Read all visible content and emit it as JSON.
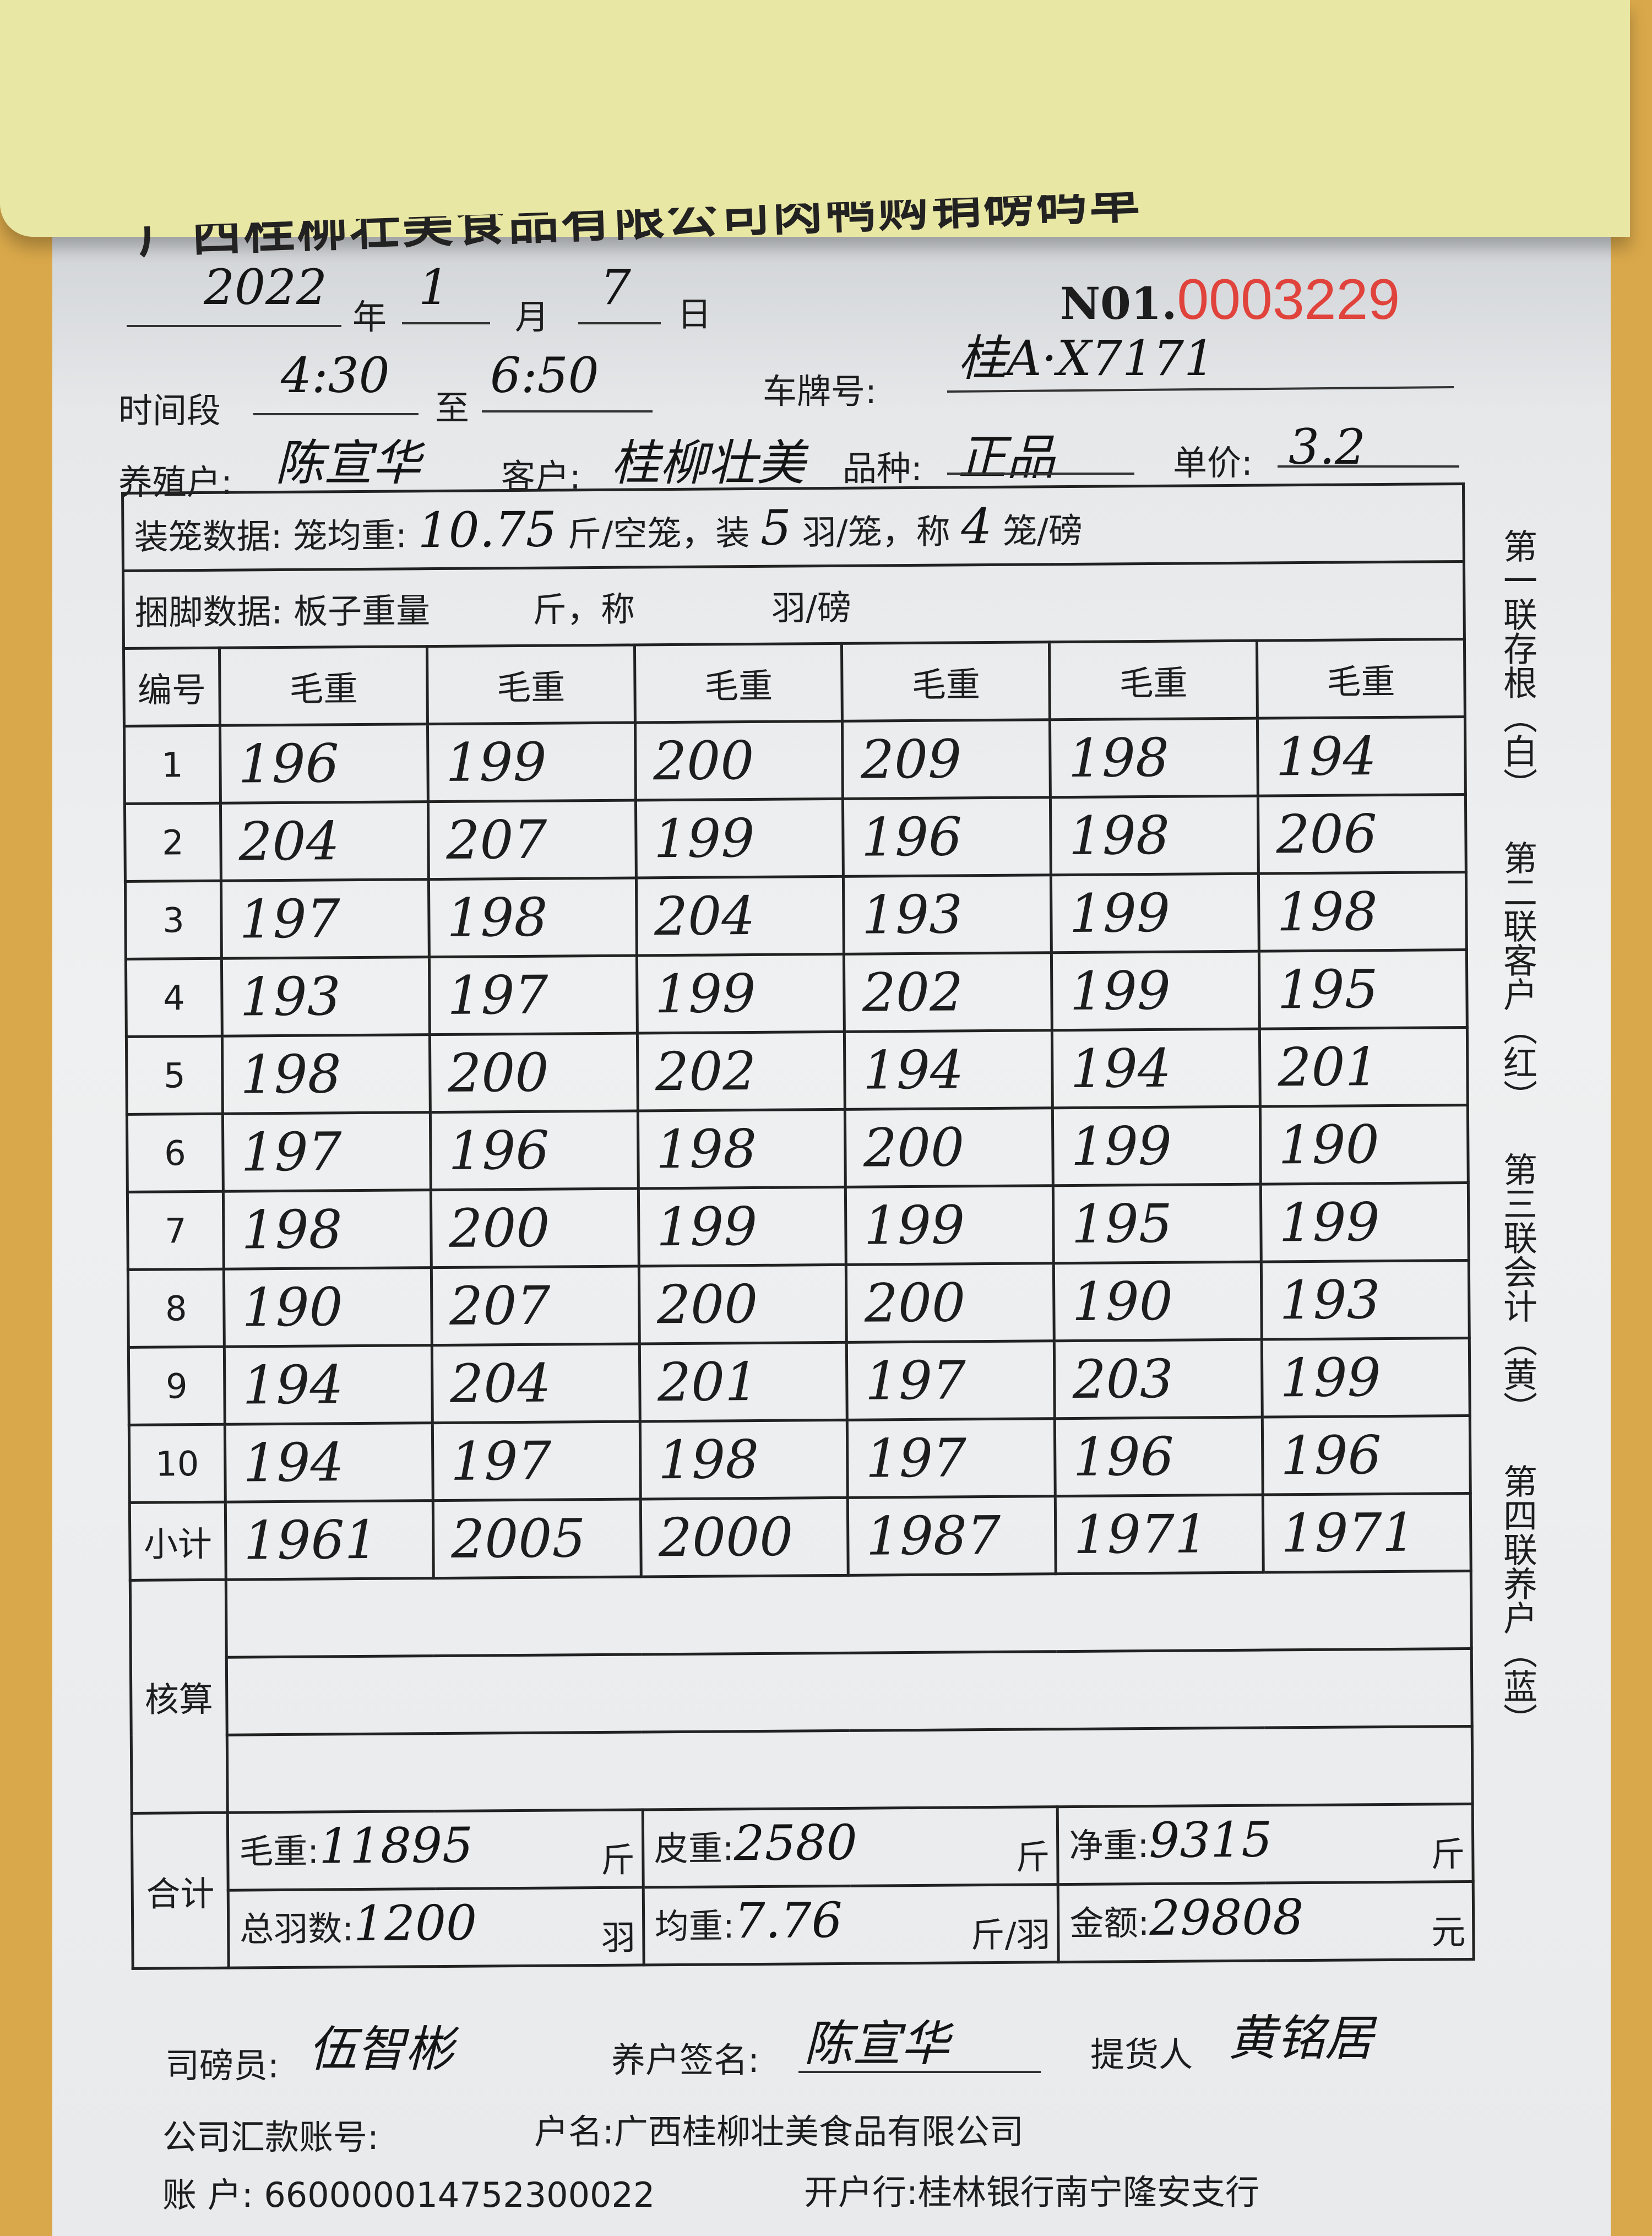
{
  "header": {
    "title": "广西桂柳壮美食品有限公司肉鸭购销磅码单",
    "no_prefix": "N01.",
    "no_value": "0003229"
  },
  "date": {
    "year": "2022",
    "year_label": "年",
    "month": "1",
    "month_label": "月",
    "day": "7",
    "day_label": "日"
  },
  "time": {
    "label": "时间段",
    "from": "4:30",
    "to_label": "至",
    "to": "6:50",
    "plate_label": "车牌号:",
    "plate": "桂A·X7171"
  },
  "parties": {
    "farmer_label": "养殖户:",
    "farmer": "陈宣华",
    "customer_label": "客户:",
    "customer": "桂柳壮美",
    "variety_label": "品种:",
    "variety": "正品",
    "price_label": "单价:",
    "price": "3.2"
  },
  "cage": {
    "label": "装笼数据: 笼均重:",
    "avg_weight": "10.75",
    "unit1": "斤/空笼，装",
    "per_cage": "5",
    "unit2": "羽/笼，称",
    "cages": "4",
    "unit3": "笼/磅"
  },
  "bind": {
    "text": "捆脚数据: 板子重量　　　斤，称　　　　羽/磅"
  },
  "table": {
    "headers": [
      "编号",
      "毛重",
      "毛重",
      "毛重",
      "毛重",
      "毛重",
      "毛重"
    ],
    "rows": [
      [
        "1",
        "196",
        "199",
        "200",
        "209",
        "198",
        "194"
      ],
      [
        "2",
        "204",
        "207",
        "199",
        "196",
        "198",
        "206"
      ],
      [
        "3",
        "197",
        "198",
        "204",
        "193",
        "199",
        "198"
      ],
      [
        "4",
        "193",
        "197",
        "199",
        "202",
        "199",
        "195"
      ],
      [
        "5",
        "198",
        "200",
        "202",
        "194",
        "194",
        "201"
      ],
      [
        "6",
        "197",
        "196",
        "198",
        "200",
        "199",
        "190"
      ],
      [
        "7",
        "198",
        "200",
        "199",
        "199",
        "195",
        "199"
      ],
      [
        "8",
        "190",
        "207",
        "200",
        "200",
        "190",
        "193"
      ],
      [
        "9",
        "194",
        "204",
        "201",
        "197",
        "203",
        "199"
      ],
      [
        "10",
        "194",
        "197",
        "198",
        "197",
        "196",
        "196"
      ]
    ],
    "subtotal_label": "小计",
    "subtotals": [
      "1961",
      "2005",
      "2000",
      "1987",
      "1971",
      "1971"
    ],
    "check_label": "核算"
  },
  "totals": {
    "label": "合计",
    "gross_label": "毛重:",
    "gross": "11895",
    "gross_unit": "斤",
    "tare_label": "皮重:",
    "tare": "2580",
    "tare_unit": "斤",
    "net_label": "净重:",
    "net": "9315",
    "net_unit": "斤",
    "count_label": "总羽数:",
    "count": "1200",
    "count_unit": "羽",
    "avg_label": "均重:",
    "avg": "7.76",
    "avg_unit": "斤/羽",
    "amount_label": "金额:",
    "amount": "29808",
    "amount_unit": "元"
  },
  "signatures": {
    "weigher_label": "司磅员:",
    "weigher": "伍智彬",
    "farmer_label": "养户签名:",
    "farmer": "陈宣华",
    "pickup_label": "提货人",
    "pickup": "黄铭居"
  },
  "account": {
    "label": "公司汇款账号:",
    "name_label": "户名:",
    "name": "广西桂柳壮美食品有限公司",
    "acct_label": "账 户:",
    "acct": "660000014752300022",
    "bank_label": "开户行:",
    "bank": "桂林银行南宁隆安支行"
  },
  "copies": [
    "第一联存根（白）",
    "第二联客户（红）",
    "第三联会计（黄）",
    "第四联养户（蓝）"
  ]
}
